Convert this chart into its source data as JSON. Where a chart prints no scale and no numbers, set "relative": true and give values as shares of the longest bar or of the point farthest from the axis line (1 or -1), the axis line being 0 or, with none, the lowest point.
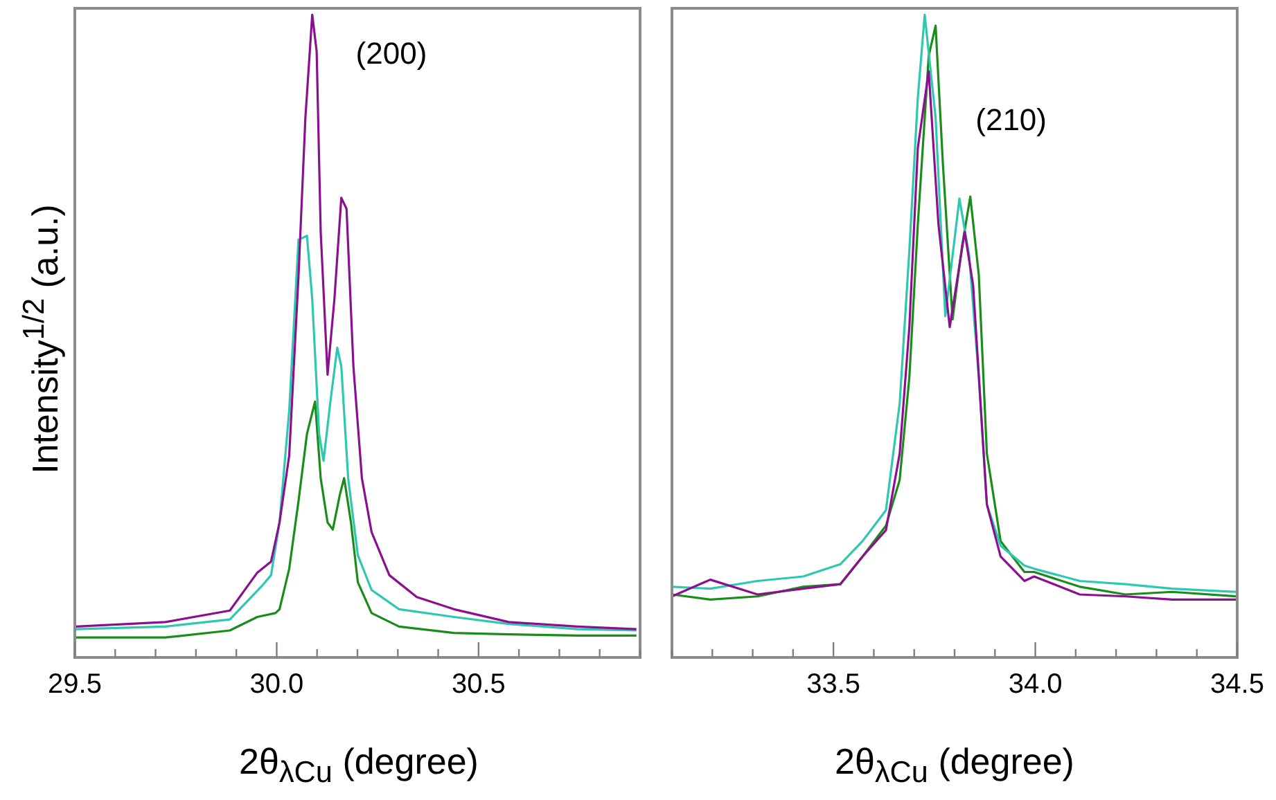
{
  "chart_data": [
    {
      "type": "line",
      "relative": true,
      "xlabel": "2θ$_{λCu}$ (degree)",
      "ylabel": "Intensity$^{1/2}$ (a.u.)",
      "xlim": [
        29.5,
        30.9
      ],
      "xticks": [
        29.5,
        {
          "value": 29.6,
          "label": null
        },
        {
          "value": 29.7,
          "label": null
        },
        {
          "value": 29.8,
          "label": null
        },
        {
          "value": 29.9,
          "label": null
        },
        {
          "value": 30.0,
          "label": "30.0"
        },
        {
          "value": 30.1,
          "label": null
        },
        {
          "value": 30.2,
          "label": null
        },
        {
          "value": 30.3,
          "label": null
        },
        {
          "value": 30.4,
          "label": null
        },
        30.5,
        {
          "value": 30.6,
          "label": null
        },
        {
          "value": 30.7,
          "label": null
        },
        {
          "value": 30.8,
          "label": null
        },
        {
          "value": 30.9,
          "label": null
        }
      ],
      "annotations": [
        "(200)"
      ],
      "series": [
        {
          "color": "#8b108f",
          "x": [
            29.503,
            29.724,
            29.884,
            29.952,
            29.986,
            30.007,
            30.031,
            30.054,
            30.071,
            30.088,
            30.099,
            30.109,
            30.126,
            30.143,
            30.16,
            30.173,
            30.19,
            30.211,
            30.235,
            30.279,
            30.347,
            30.439,
            30.575,
            30.745,
            30.891
          ],
          "values": [
            0.048,
            0.055,
            0.073,
            0.132,
            0.149,
            0.21,
            0.314,
            0.593,
            0.839,
            1,
            0.943,
            0.662,
            0.44,
            0.558,
            0.715,
            0.698,
            0.453,
            0.279,
            0.195,
            0.128,
            0.094,
            0.075,
            0.055,
            0.048,
            0.044
          ]
        },
        {
          "color": "#2ec8b0",
          "x": [
            29.503,
            29.724,
            29.884,
            29.963,
            29.986,
            30.007,
            30.031,
            30.054,
            30.075,
            30.088,
            30.105,
            30.116,
            30.133,
            30.15,
            30.16,
            30.177,
            30.201,
            30.235,
            30.303,
            30.439,
            30.575,
            30.745,
            30.891
          ],
          "values": [
            0.044,
            0.048,
            0.059,
            0.111,
            0.128,
            0.21,
            0.384,
            0.65,
            0.656,
            0.558,
            0.348,
            0.306,
            0.398,
            0.482,
            0.453,
            0.279,
            0.159,
            0.105,
            0.075,
            0.063,
            0.052,
            0.044,
            0.042
          ]
        },
        {
          "color": "#1a8c1a",
          "x": [
            29.503,
            29.724,
            29.884,
            29.952,
            29.997,
            30.007,
            30.031,
            30.054,
            30.075,
            30.095,
            30.109,
            30.126,
            30.139,
            30.156,
            30.167,
            30.184,
            30.201,
            30.235,
            30.303,
            30.439,
            30.575,
            30.745,
            30.891
          ],
          "values": [
            0.031,
            0.031,
            0.042,
            0.063,
            0.069,
            0.075,
            0.138,
            0.243,
            0.348,
            0.398,
            0.279,
            0.21,
            0.199,
            0.252,
            0.279,
            0.21,
            0.117,
            0.069,
            0.048,
            0.038,
            0.036,
            0.034,
            0.034
          ]
        }
      ]
    },
    {
      "type": "line",
      "relative": true,
      "xlabel": "2θ$_{λCu}$ (degree)",
      "xlim": [
        33.1,
        34.5
      ],
      "xticks": [
        {
          "value": 33.1,
          "label": null
        },
        {
          "value": 33.2,
          "label": null
        },
        {
          "value": 33.3,
          "label": null
        },
        {
          "value": 33.4,
          "label": null
        },
        33.5,
        {
          "value": 33.6,
          "label": null
        },
        {
          "value": 33.7,
          "label": null
        },
        {
          "value": 33.8,
          "label": null
        },
        {
          "value": 33.9,
          "label": null
        },
        {
          "value": 34.0,
          "label": "34.0"
        },
        {
          "value": 34.1,
          "label": null
        },
        {
          "value": 34.2,
          "label": null
        },
        {
          "value": 34.3,
          "label": null
        },
        {
          "value": 34.4,
          "label": null
        },
        34.5
      ],
      "annotations": [
        "(210)"
      ],
      "series": [
        {
          "color": "#8b108f",
          "x": [
            33.1,
            33.195,
            33.312,
            33.425,
            33.517,
            33.572,
            33.63,
            33.664,
            33.688,
            33.709,
            33.736,
            33.76,
            33.788,
            33.825,
            33.846,
            33.88,
            33.914,
            33.973,
            33.997,
            34.11,
            34.223,
            34.339,
            34.497
          ],
          "values": [
            0.095,
            0.121,
            0.098,
            0.107,
            0.114,
            0.157,
            0.198,
            0.317,
            0.514,
            0.793,
            0.912,
            0.674,
            0.514,
            0.662,
            0.579,
            0.238,
            0.157,
            0.119,
            0.126,
            0.098,
            0.095,
            0.09,
            0.09
          ]
        },
        {
          "color": "#2ec8b0",
          "x": [
            33.1,
            33.195,
            33.312,
            33.425,
            33.517,
            33.572,
            33.63,
            33.664,
            33.688,
            33.709,
            33.726,
            33.753,
            33.777,
            33.812,
            33.836,
            33.86,
            33.88,
            33.914,
            33.973,
            33.997,
            34.11,
            34.223,
            34.339,
            34.497
          ],
          "values": [
            0.11,
            0.107,
            0.119,
            0.126,
            0.145,
            0.181,
            0.229,
            0.395,
            0.633,
            0.871,
            1,
            0.84,
            0.531,
            0.714,
            0.626,
            0.436,
            0.238,
            0.174,
            0.143,
            0.138,
            0.119,
            0.114,
            0.107,
            0.102
          ]
        },
        {
          "color": "#1a8c1a",
          "x": [
            33.1,
            33.195,
            33.312,
            33.425,
            33.517,
            33.572,
            33.63,
            33.664,
            33.688,
            33.709,
            33.736,
            33.753,
            33.771,
            33.795,
            33.818,
            33.839,
            33.86,
            33.88,
            33.914,
            33.973,
            33.997,
            34.11,
            34.223,
            34.339,
            34.497
          ],
          "values": [
            0.098,
            0.09,
            0.095,
            0.11,
            0.114,
            0.157,
            0.205,
            0.276,
            0.436,
            0.674,
            0.936,
            0.983,
            0.769,
            0.526,
            0.638,
            0.717,
            0.595,
            0.317,
            0.181,
            0.133,
            0.133,
            0.11,
            0.098,
            0.102,
            0.095
          ]
        }
      ]
    }
  ]
}
